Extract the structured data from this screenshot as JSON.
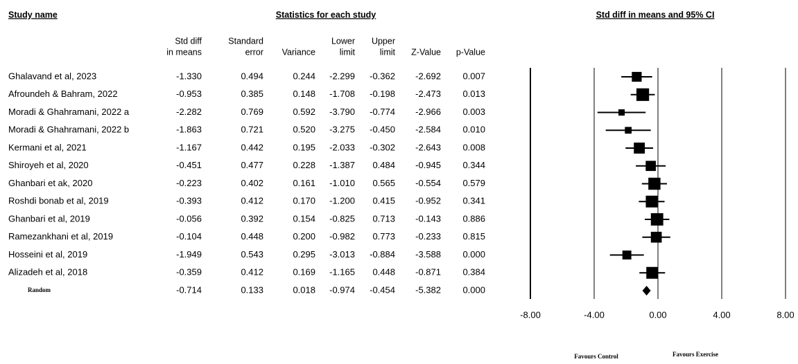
{
  "chart_data": {
    "type": "forest",
    "study_header": "Study name",
    "stats_header": "Statistics for each study",
    "plot_header": "Std diff in means and 95% CI",
    "studies": [
      "Ghalavand et al, 2023",
      "Afroundeh & Bahram, 2022",
      "Moradi & Ghahramani, 2022 a",
      "Moradi & Ghahramani, 2022 b",
      "Kermani et al, 2021",
      "Shiroyeh et al, 2020",
      "Ghanbari et ak, 2020",
      "Roshdi bonab et al, 2019",
      "Ghanbari et al, 2019",
      "Ramezankhani et al, 2019",
      "Hosseini et al, 2019",
      "Alizadeh et al, 2018",
      "Random"
    ],
    "columns": [
      {
        "header": [
          "Std diff",
          "in means"
        ],
        "values": [
          -1.33,
          -0.953,
          -2.282,
          -1.863,
          -1.167,
          -0.451,
          -0.223,
          -0.393,
          -0.056,
          -0.104,
          -1.949,
          -0.359,
          -0.714
        ],
        "value_labels": [
          "-1.330",
          "-0.953",
          "-2.282",
          "-1.863",
          "-1.167",
          "-0.451",
          "-0.223",
          "-0.393",
          "-0.056",
          "-0.104",
          "-1.949",
          "-0.359",
          "-0.714"
        ]
      },
      {
        "header": [
          "Standard",
          "error"
        ],
        "values": [
          0.494,
          0.385,
          0.769,
          0.721,
          0.442,
          0.477,
          0.402,
          0.412,
          0.392,
          0.448,
          0.543,
          0.412,
          0.133
        ],
        "value_labels": [
          "0.494",
          "0.385",
          "0.769",
          "0.721",
          "0.442",
          "0.477",
          "0.402",
          "0.412",
          "0.392",
          "0.448",
          "0.543",
          "0.412",
          "0.133"
        ]
      },
      {
        "header": [
          "Variance"
        ],
        "values": [
          0.244,
          0.148,
          0.592,
          0.52,
          0.195,
          0.228,
          0.161,
          0.17,
          0.154,
          0.2,
          0.295,
          0.169,
          0.018
        ],
        "value_labels": [
          "0.244",
          "0.148",
          "0.592",
          "0.520",
          "0.195",
          "0.228",
          "0.161",
          "0.170",
          "0.154",
          "0.200",
          "0.295",
          "0.169",
          "0.018"
        ]
      },
      {
        "header": [
          "Lower",
          "limit"
        ],
        "values": [
          -2.299,
          -1.708,
          -3.79,
          -3.275,
          -2.033,
          -1.387,
          -1.01,
          -1.2,
          -0.825,
          -0.982,
          -3.013,
          -1.165,
          -0.974
        ],
        "value_labels": [
          "-2.299",
          "-1.708",
          "-3.790",
          "-3.275",
          "-2.033",
          "-1.387",
          "-1.010",
          "-1.200",
          "-0.825",
          "-0.982",
          "-3.013",
          "-1.165",
          "-0.974"
        ]
      },
      {
        "header": [
          "Upper",
          "limit"
        ],
        "values": [
          -0.362,
          -0.198,
          -0.774,
          -0.45,
          -0.302,
          0.484,
          0.565,
          0.415,
          0.713,
          0.773,
          -0.884,
          0.448,
          -0.454
        ],
        "value_labels": [
          "-0.362",
          "-0.198",
          "-0.774",
          "-0.450",
          "-0.302",
          "0.484",
          "0.565",
          "0.415",
          "0.713",
          "0.773",
          "-0.884",
          "0.448",
          "-0.454"
        ]
      },
      {
        "header": [
          "Z-Value"
        ],
        "values": [
          -2.692,
          -2.473,
          -2.966,
          -2.584,
          -2.643,
          -0.945,
          -0.554,
          -0.952,
          -0.143,
          -0.233,
          -3.588,
          -0.871,
          -5.382
        ],
        "value_labels": [
          "-2.692",
          "-2.473",
          "-2.966",
          "-2.584",
          "-2.643",
          "-0.945",
          "-0.554",
          "-0.952",
          "-0.143",
          "-0.233",
          "-3.588",
          "-0.871",
          "-5.382"
        ]
      },
      {
        "header": [
          "p-Value"
        ],
        "values": [
          0.007,
          0.013,
          0.003,
          0.01,
          0.008,
          0.344,
          0.579,
          0.341,
          0.886,
          0.815,
          0.0,
          0.384,
          0.0
        ],
        "value_labels": [
          "0.007",
          "0.013",
          "0.003",
          "0.010",
          "0.008",
          "0.344",
          "0.579",
          "0.341",
          "0.886",
          "0.815",
          "0.000",
          "0.384",
          "0.000"
        ]
      }
    ],
    "xlim": [
      -8,
      8
    ],
    "xticks": [
      {
        "value": -8,
        "label": "-8.00"
      },
      {
        "value": -4,
        "label": "-4.00"
      },
      {
        "value": 0,
        "label": "0.00"
      },
      {
        "value": 4,
        "label": "4.00"
      },
      {
        "value": 8,
        "label": "8.00"
      }
    ],
    "favours_left": "Favours Control",
    "favours_right": "Favours Exercise",
    "color": "#000000"
  }
}
